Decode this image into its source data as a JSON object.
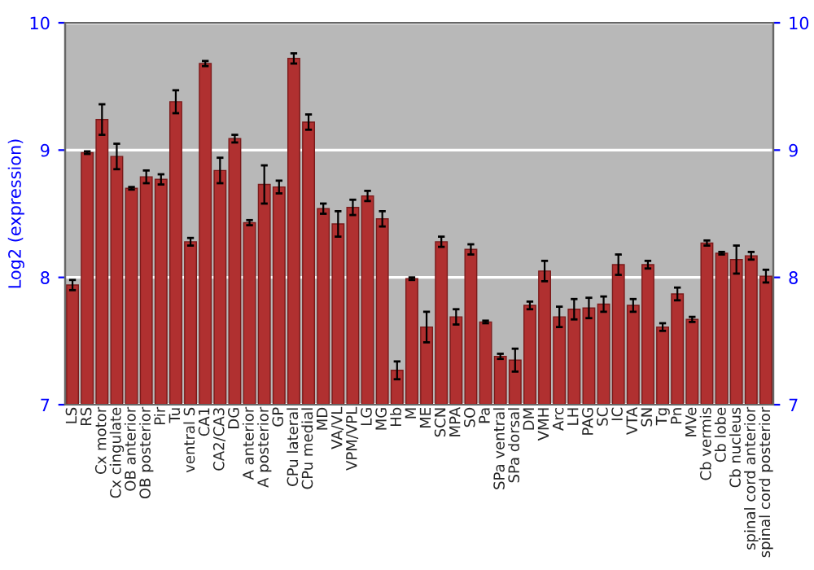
{
  "chart_data": {
    "type": "bar",
    "ylabel": "Log2 (expression)",
    "categories": [
      "LS",
      "RS",
      "Cx motor",
      "Cx cingulate",
      "OB anterior",
      "OB posterior",
      "Pir",
      "Tu",
      "ventral S",
      "CA1",
      "CA2/CA3",
      "DG",
      "A anterior",
      "A posterior",
      "GP",
      "CPu lateral",
      "CPu medial",
      "MD",
      "VA/VL",
      "VPM/VPL",
      "LG",
      "MG",
      "Hb",
      "M",
      "ME",
      "SCN",
      "MPA",
      "SO",
      "Pa",
      "SPa ventral",
      "SPa dorsal",
      "DM",
      "VMH",
      "Arc",
      "LH",
      "PAG",
      "SC",
      "IC",
      "VTA",
      "SN",
      "Tg",
      "Pn",
      "MVe",
      "Cb vermis",
      "Cb lobe",
      "Cb nucleus",
      "spinal cord anterior",
      "spinal cord posterior"
    ],
    "values": [
      7.94,
      8.98,
      9.24,
      8.95,
      8.7,
      8.79,
      8.77,
      9.38,
      8.28,
      9.68,
      8.84,
      9.09,
      8.43,
      8.73,
      8.71,
      9.72,
      9.22,
      8.54,
      8.42,
      8.55,
      8.64,
      8.46,
      7.27,
      7.99,
      7.61,
      8.28,
      7.69,
      8.22,
      7.65,
      7.38,
      7.35,
      7.78,
      8.05,
      7.69,
      7.75,
      7.76,
      7.79,
      8.1,
      7.78,
      8.1,
      7.61,
      7.87,
      7.67,
      8.27,
      8.19,
      8.14,
      8.17,
      8.01
    ],
    "errors": [
      0.04,
      0.01,
      0.12,
      0.1,
      0.01,
      0.05,
      0.04,
      0.09,
      0.03,
      0.02,
      0.1,
      0.03,
      0.02,
      0.15,
      0.05,
      0.04,
      0.06,
      0.04,
      0.1,
      0.06,
      0.04,
      0.06,
      0.07,
      0.01,
      0.12,
      0.04,
      0.06,
      0.04,
      0.01,
      0.02,
      0.09,
      0.03,
      0.08,
      0.08,
      0.08,
      0.08,
      0.06,
      0.08,
      0.05,
      0.03,
      0.03,
      0.05,
      0.02,
      0.02,
      0.01,
      0.11,
      0.03,
      0.05
    ],
    "color": "#b03030",
    "ylim": [
      7,
      10
    ],
    "yticks": [
      7,
      8,
      9,
      10
    ],
    "y2lim": [
      7,
      10
    ],
    "y2ticks": [
      7,
      8,
      9,
      10
    ],
    "grid": "y",
    "legend": false
  }
}
